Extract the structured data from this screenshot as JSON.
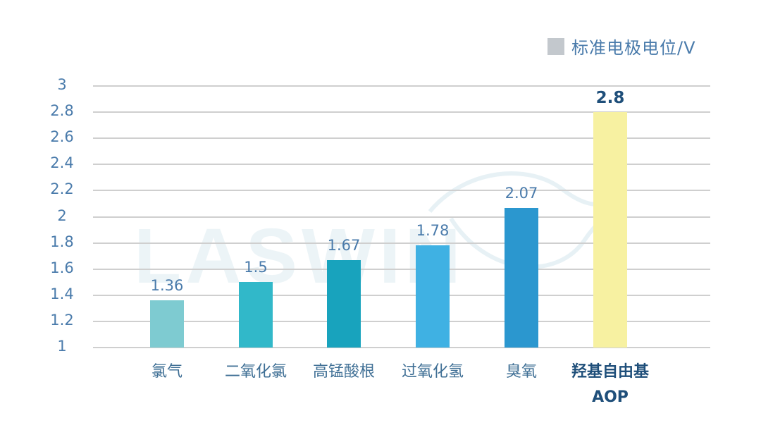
{
  "legend": {
    "label": "标准电极电位/V",
    "swatch_color": "#c3c8cd"
  },
  "watermark": {
    "text": "LASWIN"
  },
  "y_axis": {
    "ticks": [
      "3",
      "2.8",
      "2.6",
      "2.4",
      "2.2",
      "2",
      "1.8",
      "1.6",
      "1.4",
      "1.2",
      "1"
    ]
  },
  "bars": [
    {
      "label": "氯气",
      "label2": "",
      "value_label": "1.36",
      "color": "#7ecbd1"
    },
    {
      "label": "二氧化氯",
      "label2": "",
      "value_label": "1.5",
      "color": "#31b8c9"
    },
    {
      "label": "高锰酸根",
      "label2": "",
      "value_label": "1.67",
      "color": "#18a3bd"
    },
    {
      "label": "过氧化氢",
      "label2": "",
      "value_label": "1.78",
      "color": "#3fb1e3"
    },
    {
      "label": "臭氧",
      "label2": "",
      "value_label": "2.07",
      "color": "#2b97cf"
    },
    {
      "label": "羟基自由基",
      "label2": "AOP",
      "value_label": "2.8",
      "color": "#f7f1a1"
    }
  ],
  "chart_data": {
    "type": "bar",
    "title": "",
    "categories": [
      "氯气",
      "二氧化氯",
      "高锰酸根",
      "过氧化氢",
      "臭氧",
      "羟基自由基 AOP"
    ],
    "series": [
      {
        "name": "标准电极电位/V",
        "values": [
          1.36,
          1.5,
          1.67,
          1.78,
          2.07,
          2.8
        ]
      }
    ],
    "xlabel": "",
    "ylabel": "",
    "ylim": [
      1,
      3
    ],
    "yticks": [
      1,
      1.2,
      1.4,
      1.6,
      1.8,
      2,
      2.2,
      2.4,
      2.6,
      2.8,
      3
    ],
    "grid": true,
    "legend_position": "top-right",
    "bar_colors": [
      "#7ecbd1",
      "#31b8c9",
      "#18a3bd",
      "#3fb1e3",
      "#2b97cf",
      "#f7f1a1"
    ]
  }
}
